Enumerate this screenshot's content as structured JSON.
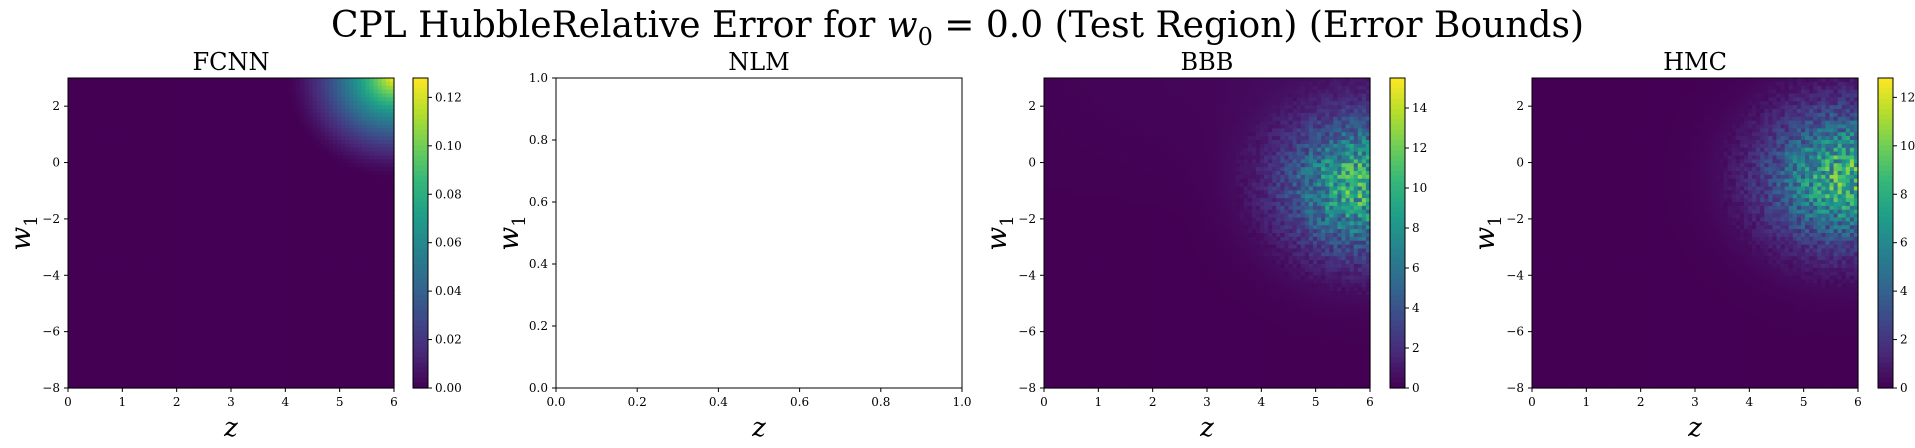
{
  "figure": {
    "suptitle_prefix": "CPL HubbleRelative Error for ",
    "suptitle_var": "w",
    "suptitle_sub": "0",
    "suptitle_suffix": " = 0.0 (Test Region) (Error Bounds)"
  },
  "colors": {
    "viridis": [
      "#440154",
      "#482878",
      "#3e4989",
      "#31688e",
      "#26828e",
      "#1f9e89",
      "#35b779",
      "#6ece58",
      "#b5de2b",
      "#fde725"
    ]
  },
  "chart_data": [
    {
      "type": "heatmap",
      "title": "FCNN",
      "xlabel": "z",
      "ylabel": "w",
      "ylabel_sub": "1",
      "xlim": [
        0,
        6
      ],
      "ylim": [
        -8,
        3
      ],
      "xticks": [
        0,
        1,
        2,
        3,
        4,
        5,
        6
      ],
      "yticks": [
        -8,
        -6,
        -4,
        -2,
        0,
        2
      ],
      "colorbar": {
        "min": 0,
        "max": 0.128,
        "ticks": [
          "0.00",
          "0.02",
          "0.04",
          "0.06",
          "0.08",
          "0.10",
          "0.12"
        ],
        "tick_values": [
          0,
          0.02,
          0.04,
          0.06,
          0.08,
          0.1,
          0.12
        ]
      },
      "field": "smooth_corner",
      "description_peak": {
        "z": 6,
        "w1": 3,
        "value": 0.128
      }
    },
    {
      "type": "empty",
      "title": "NLM",
      "xlabel": "z",
      "ylabel": "w",
      "ylabel_sub": "1",
      "xlim": [
        0,
        1
      ],
      "ylim": [
        0,
        1
      ],
      "xticks": [
        "0.0",
        "0.2",
        "0.4",
        "0.6",
        "0.8",
        "1.0"
      ],
      "xtick_values": [
        0,
        0.2,
        0.4,
        0.6,
        0.8,
        1.0
      ],
      "yticks": [
        "0.0",
        "0.2",
        "0.4",
        "0.6",
        "0.8",
        "1.0"
      ],
      "ytick_values": [
        0,
        0.2,
        0.4,
        0.6,
        0.8,
        1.0
      ]
    },
    {
      "type": "heatmap",
      "title": "BBB",
      "xlabel": "z",
      "ylabel": "w",
      "ylabel_sub": "1",
      "xlim": [
        0,
        6
      ],
      "ylim": [
        -8,
        3
      ],
      "xticks": [
        0,
        1,
        2,
        3,
        4,
        5,
        6
      ],
      "yticks": [
        -8,
        -6,
        -4,
        -2,
        0,
        2
      ],
      "colorbar": {
        "min": 0,
        "max": 15.5,
        "ticks": [
          "0",
          "2",
          "4",
          "6",
          "8",
          "10",
          "12",
          "14"
        ],
        "tick_values": [
          0,
          2,
          4,
          6,
          8,
          10,
          12,
          14
        ]
      },
      "field": "noisy_blob",
      "description_peak": {
        "z": 5.9,
        "w1": -0.8,
        "value": 15.5
      }
    },
    {
      "type": "heatmap",
      "title": "HMC",
      "xlabel": "z",
      "ylabel": "w",
      "ylabel_sub": "1",
      "xlim": [
        0,
        6
      ],
      "ylim": [
        -8,
        3
      ],
      "xticks": [
        0,
        1,
        2,
        3,
        4,
        5,
        6
      ],
      "yticks": [
        -8,
        -6,
        -4,
        -2,
        0,
        2
      ],
      "colorbar": {
        "min": 0,
        "max": 12.8,
        "ticks": [
          "0",
          "2",
          "4",
          "6",
          "8",
          "10",
          "12"
        ],
        "tick_values": [
          0,
          2,
          4,
          6,
          8,
          10,
          12
        ]
      },
      "field": "noisy_blob",
      "description_peak": {
        "z": 5.8,
        "w1": -0.5,
        "value": 12.8
      }
    }
  ]
}
